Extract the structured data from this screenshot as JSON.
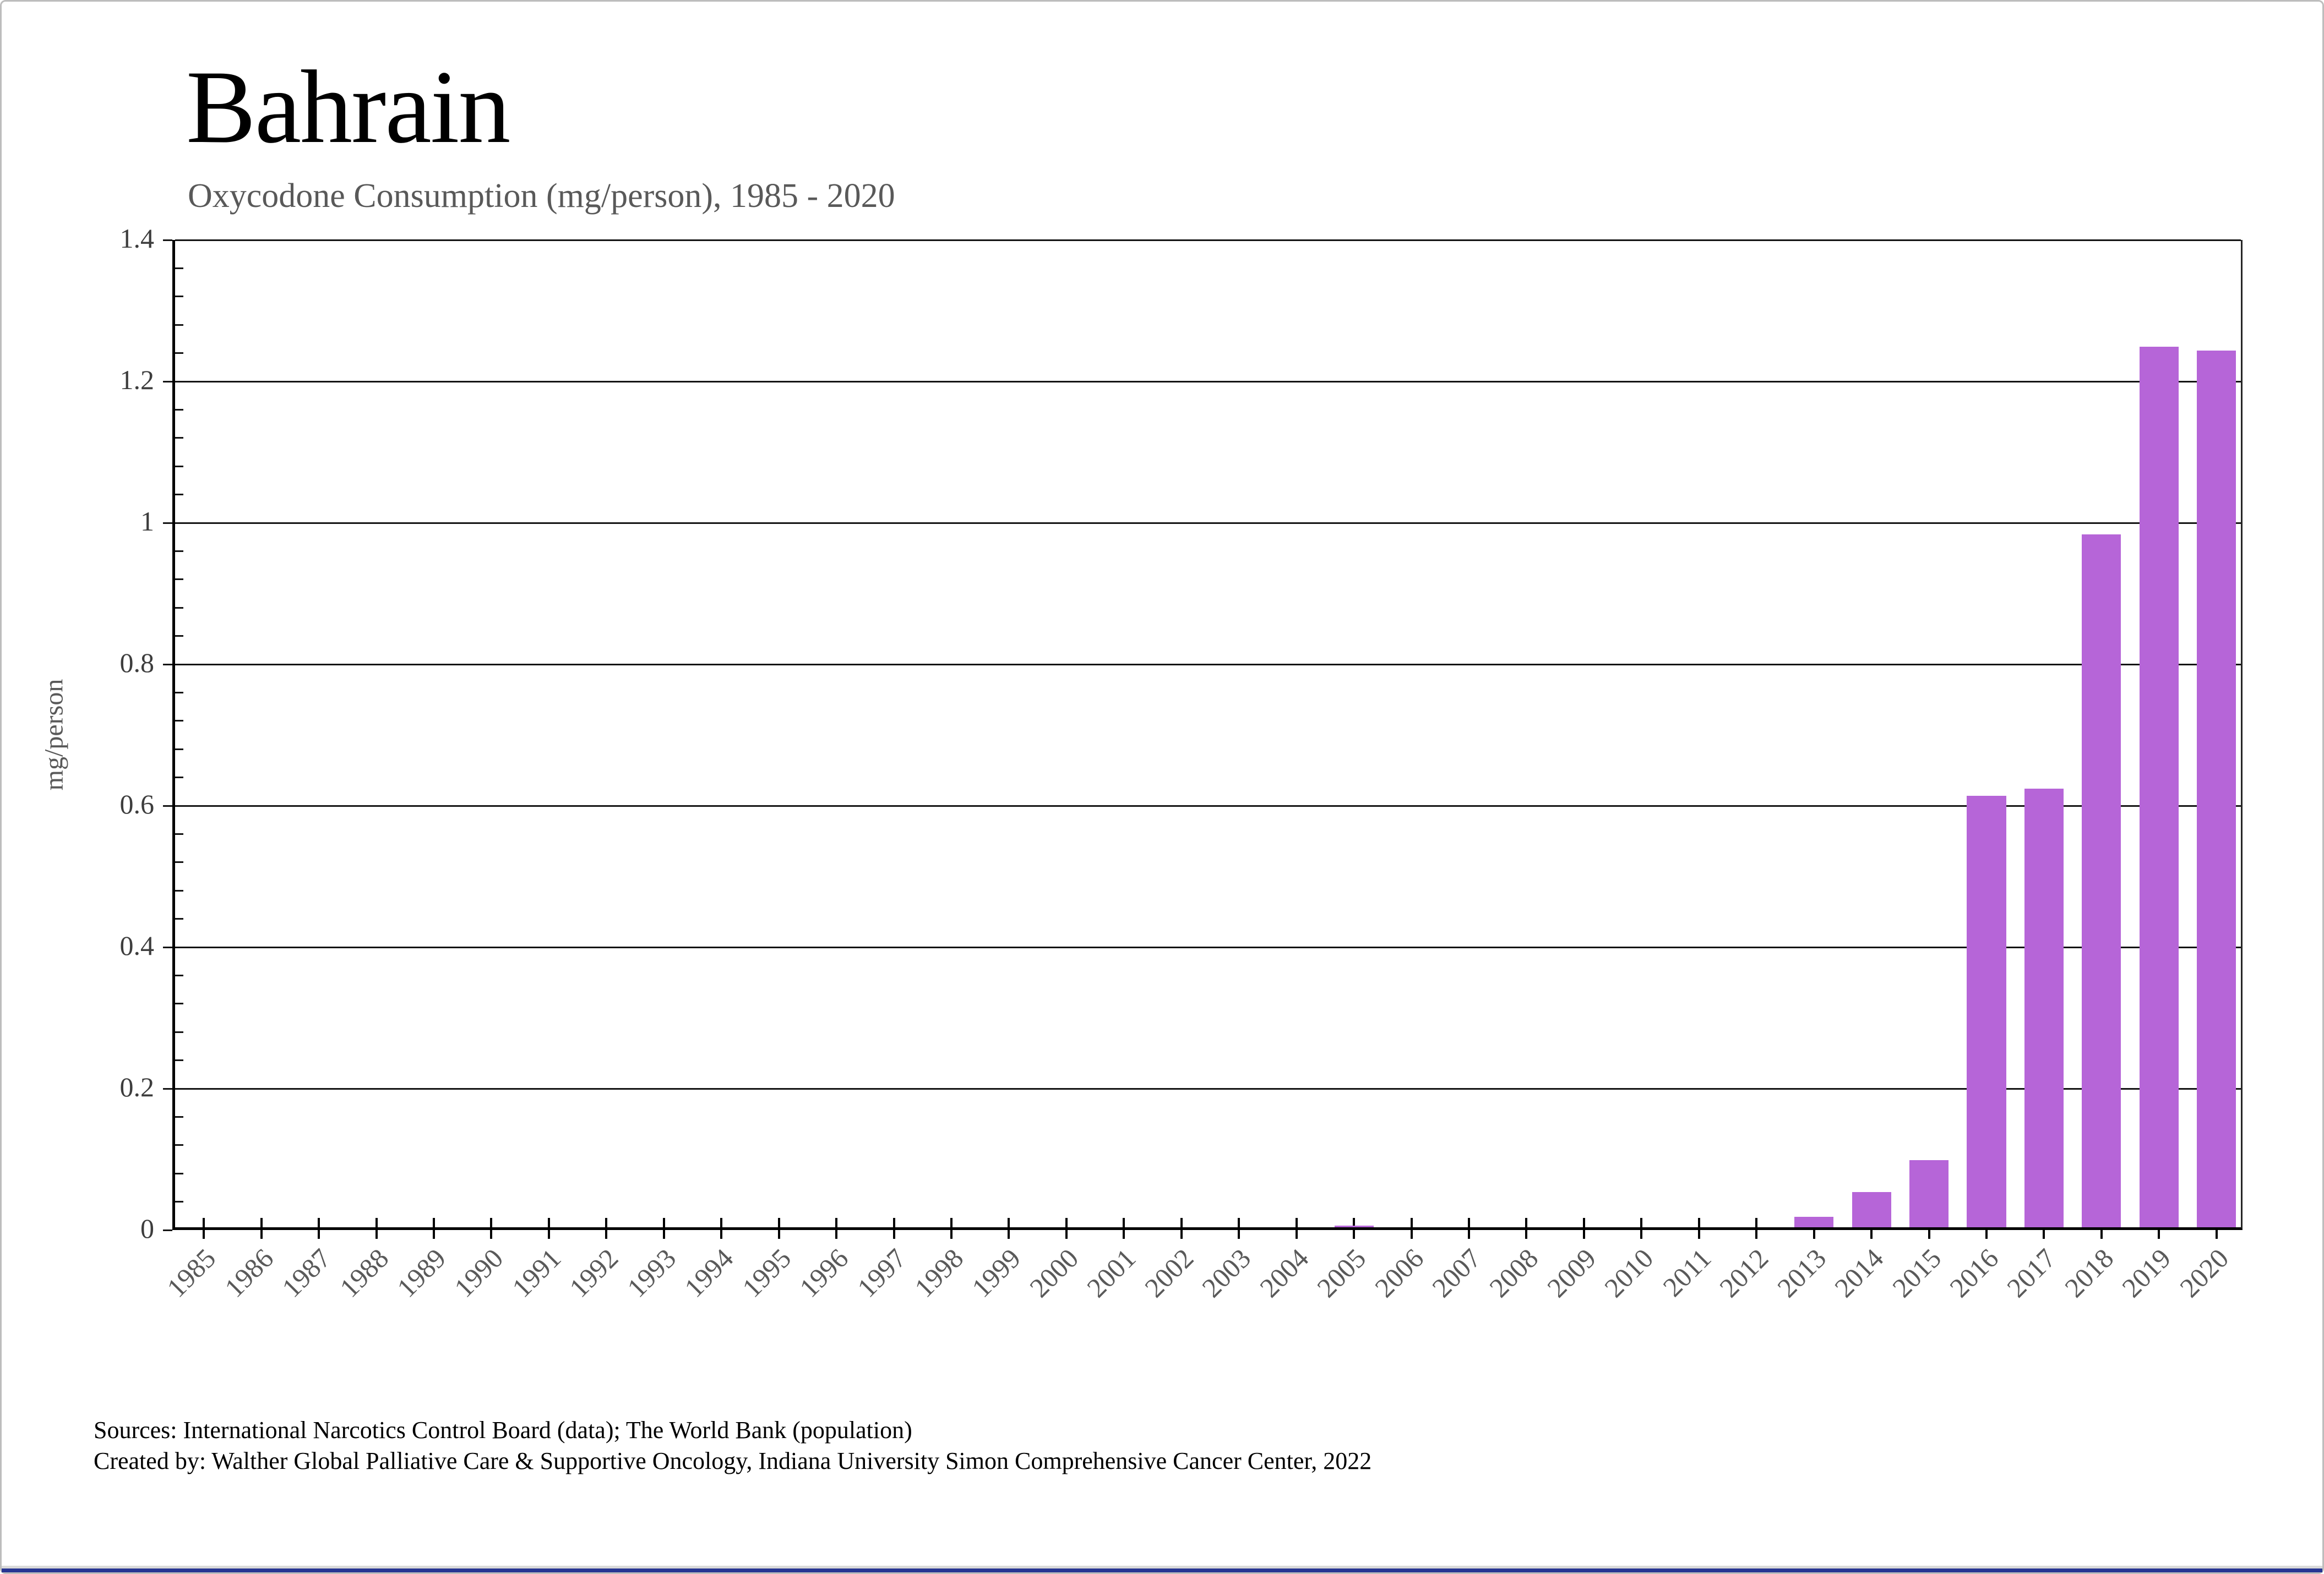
{
  "header": {
    "title": "Bahrain",
    "subtitle": "Oxycodone Consumption (mg/person), 1985 - 2020"
  },
  "chart_data": {
    "type": "bar",
    "title": "Bahrain",
    "subtitle": "Oxycodone Consumption (mg/person), 1985 - 2020",
    "xlabel": "",
    "ylabel": "mg/person",
    "ylim": [
      0,
      1.4
    ],
    "ytick_interval": 0.2,
    "ytick_labels": [
      "0",
      "0.2",
      "0.4",
      "0.6",
      "0.8",
      "1",
      "1.2",
      "1.4"
    ],
    "yminor_interval": 0.04,
    "grid": "horizontal-major",
    "legend": "none",
    "bar_color": "#b665d8",
    "bar_width_fraction": 0.68,
    "categories": [
      1985,
      1986,
      1987,
      1988,
      1989,
      1990,
      1991,
      1992,
      1993,
      1994,
      1995,
      1996,
      1997,
      1998,
      1999,
      2000,
      2001,
      2002,
      2003,
      2004,
      2005,
      2006,
      2007,
      2008,
      2009,
      2010,
      2011,
      2012,
      2013,
      2014,
      2015,
      2016,
      2017,
      2018,
      2019,
      2020
    ],
    "values": [
      0,
      0,
      0,
      0,
      0,
      0,
      0,
      0,
      0,
      0,
      0,
      0,
      0,
      0,
      0,
      0,
      0,
      0,
      0,
      0,
      0.002,
      0,
      0,
      0,
      0,
      0,
      0,
      0,
      0.015,
      0.05,
      0.095,
      0.61,
      0.62,
      0.98,
      1.245,
      1.24
    ]
  },
  "footer": {
    "line1": "Sources: International Narcotics Control Board (data); The World Bank (population)",
    "line2": "Created by: Walther Global Palliative Care & Supportive Oncology, Indiana University Simon Comprehensive Cancer Center, 2022"
  },
  "colors": {
    "bar": "#b665d8",
    "grid": "#141414",
    "axis": "#000000",
    "tick_label": "#3d3d3d",
    "x_label": "#595959",
    "subtitle": "#595959",
    "frame_border": "#bdbdbd",
    "bottom_strip_gray": "#d9d9d9",
    "bottom_strip_blue": "#283593"
  }
}
